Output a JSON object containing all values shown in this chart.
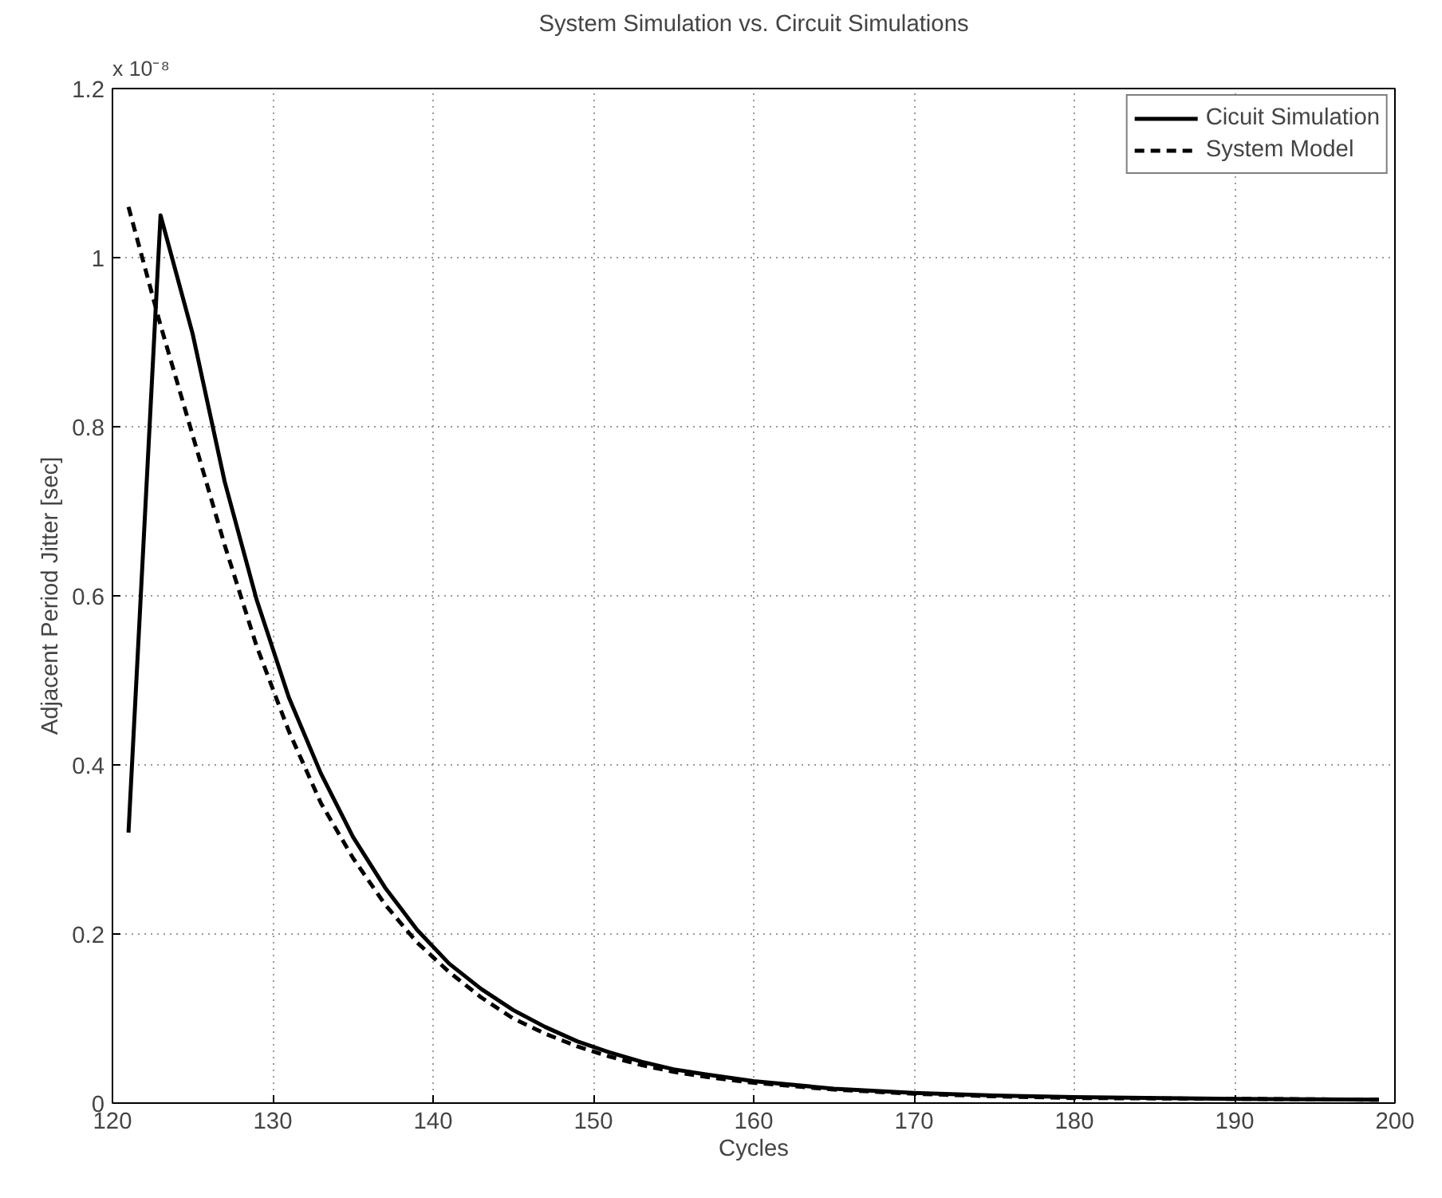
{
  "chart_data": {
    "type": "line",
    "title": "System Simulation vs. Circuit Simulations",
    "xlabel": "Cycles",
    "ylabel": "Adjacent Period Jitter [sec]",
    "annotations": [
      "x 10⁻⁸"
    ],
    "xlim": [
      120,
      200
    ],
    "xticks": [
      120,
      130,
      140,
      150,
      160,
      170,
      180,
      190,
      200
    ],
    "ylim": [
      0,
      1.2
    ],
    "yticks": [
      0,
      0.2,
      0.4,
      0.6,
      0.8,
      1,
      1.2
    ],
    "grid": true,
    "legend": "top right",
    "x": [
      121,
      123,
      125,
      127,
      129,
      131,
      133,
      135,
      137,
      139,
      141,
      143,
      145,
      147,
      149,
      151,
      153,
      155,
      157,
      160,
      165,
      170,
      175,
      180,
      190,
      199
    ],
    "series": [
      {
        "name": "Cicuit Simulation",
        "color": "#000000",
        "line_style": "solid",
        "values": [
          0.32,
          1.05,
          0.91,
          0.735,
          0.595,
          0.48,
          0.39,
          0.315,
          0.255,
          0.205,
          0.165,
          0.135,
          0.11,
          0.09,
          0.073,
          0.06,
          0.049,
          0.04,
          0.034,
          0.026,
          0.017,
          0.012,
          0.009,
          0.007,
          0.005,
          0.004
        ]
      },
      {
        "name": "System Model",
        "color": "#000000",
        "line_style": "dashed",
        "values": [
          1.06,
          0.92,
          0.79,
          0.66,
          0.54,
          0.44,
          0.355,
          0.29,
          0.235,
          0.19,
          0.155,
          0.125,
          0.1,
          0.082,
          0.067,
          0.055,
          0.045,
          0.037,
          0.031,
          0.024,
          0.016,
          0.011,
          0.008,
          0.006,
          0.005,
          0.004
        ]
      }
    ]
  }
}
